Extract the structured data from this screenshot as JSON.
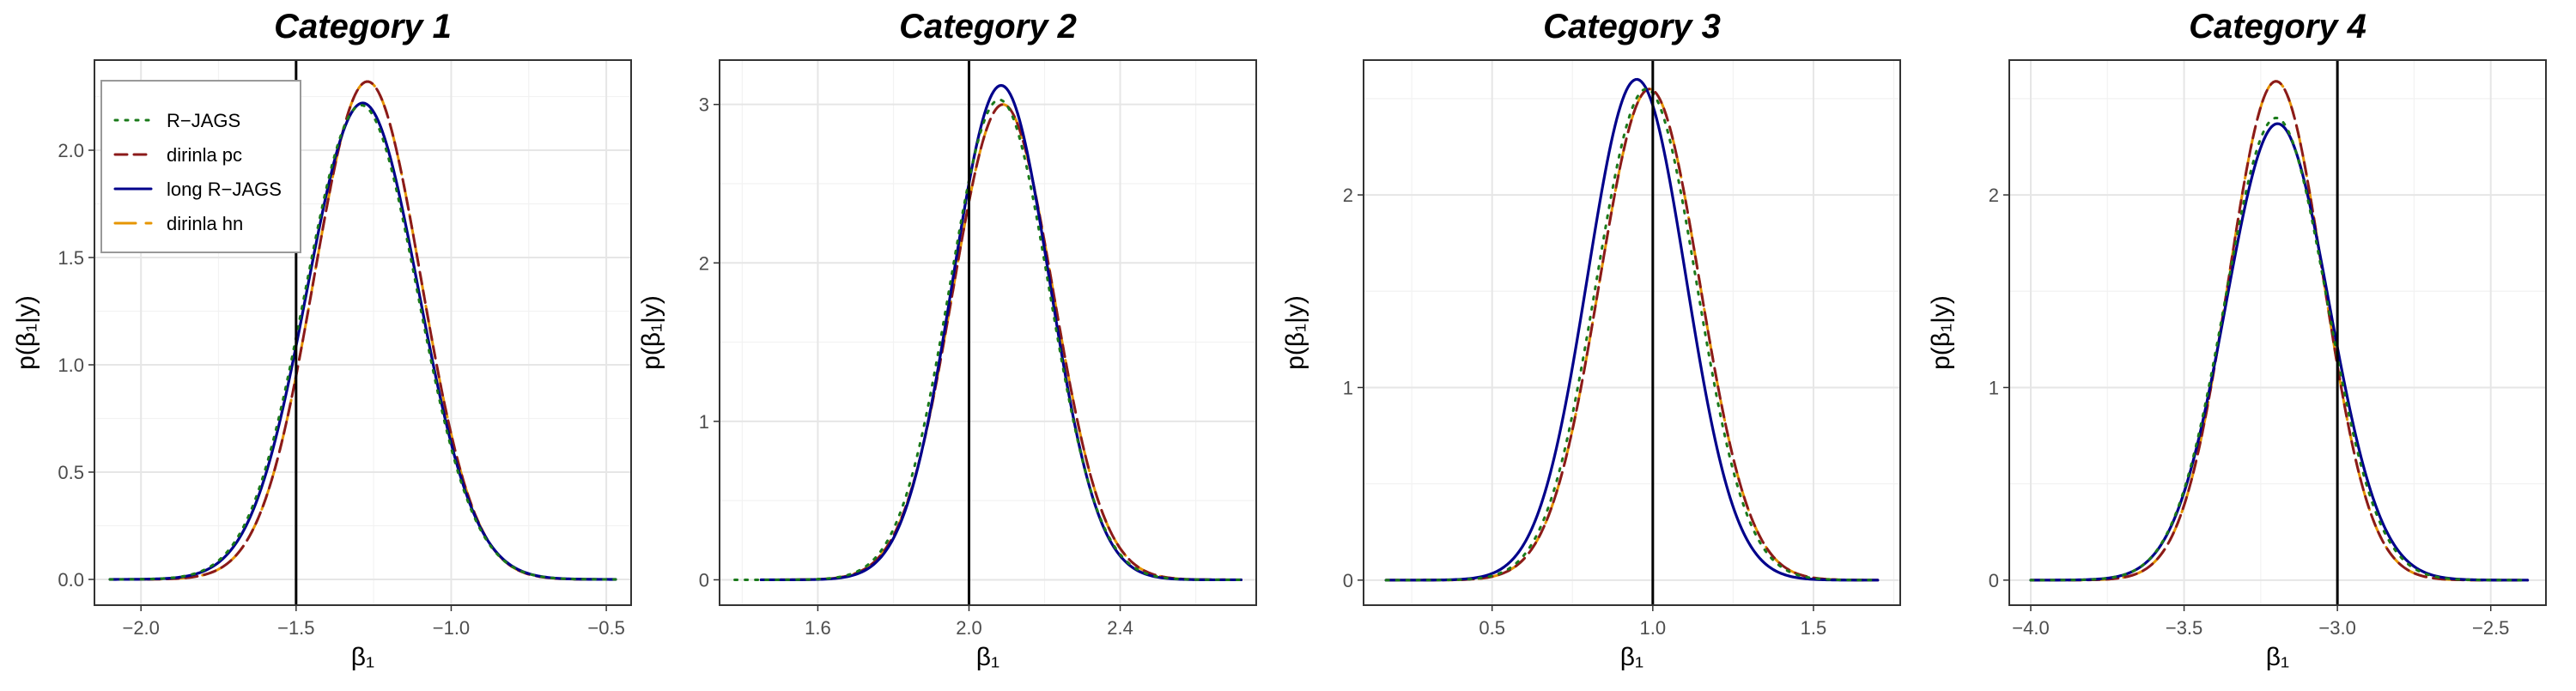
{
  "chart_data": [
    {
      "type": "line",
      "title": "Category 1",
      "xlabel": "β₁",
      "ylabel": "p(β₁|y)",
      "xlim": [
        -2.15,
        -0.42
      ],
      "ylim": [
        -0.12,
        2.42
      ],
      "xticks": [
        -2.0,
        -1.5,
        -1.0,
        -0.5
      ],
      "xtick_labels": [
        "−2.0",
        "−1.5",
        "−1.0",
        "−0.5"
      ],
      "yticks": [
        0.0,
        0.5,
        1.0,
        1.5,
        2.0
      ],
      "ytick_labels": [
        "0.0",
        "0.5",
        "1.0",
        "1.5",
        "2.0"
      ],
      "vline": -1.5,
      "x_range": [
        -2.1,
        -0.47
      ],
      "legend": {
        "position": "top-left"
      },
      "series": [
        {
          "name": "R−JAGS",
          "color": "#1a7a1a",
          "dash": "dotted",
          "peak_x": -1.29,
          "peak_y": 2.21,
          "sd": 0.181
        },
        {
          "name": "dirinla pc",
          "color": "#8b1a1a",
          "dash": "dashed",
          "peak_x": -1.27,
          "peak_y": 2.32,
          "sd": 0.172
        },
        {
          "name": "long R−JAGS",
          "color": "#00008b",
          "dash": "solid",
          "peak_x": -1.285,
          "peak_y": 2.22,
          "sd": 0.18
        },
        {
          "name": "dirinla hn",
          "color": "#e69500",
          "dash": "longdash",
          "peak_x": -1.27,
          "peak_y": 2.32,
          "sd": 0.172
        }
      ]
    },
    {
      "type": "line",
      "title": "Category 2",
      "xlabel": "β₁",
      "ylabel": "p(β₁|y)",
      "xlim": [
        1.34,
        2.76
      ],
      "ylim": [
        -0.16,
        3.28
      ],
      "xticks": [
        1.6,
        2.0,
        2.4
      ],
      "xtick_labels": [
        "1.6",
        "2.0",
        "2.4"
      ],
      "yticks": [
        0,
        1,
        2,
        3
      ],
      "ytick_labels": [
        "0",
        "1",
        "2",
        "3"
      ],
      "vline": 2.0,
      "series": [
        {
          "name": "R−JAGS",
          "color": "#1a7a1a",
          "dash": "dotted",
          "peak_x": 2.08,
          "peak_y": 3.03,
          "sd": 0.132,
          "x_range": [
            1.38,
            2.72
          ]
        },
        {
          "name": "dirinla pc",
          "color": "#8b1a1a",
          "dash": "dashed",
          "peak_x": 2.09,
          "peak_y": 3.0,
          "sd": 0.133,
          "x_range": [
            1.45,
            2.72
          ]
        },
        {
          "name": "long R−JAGS",
          "color": "#00008b",
          "dash": "solid",
          "peak_x": 2.085,
          "peak_y": 3.12,
          "sd": 0.128,
          "x_range": [
            1.45,
            2.72
          ]
        },
        {
          "name": "dirinla hn",
          "color": "#e69500",
          "dash": "longdash",
          "peak_x": 2.09,
          "peak_y": 3.0,
          "sd": 0.133,
          "x_range": [
            1.45,
            2.72
          ]
        }
      ]
    },
    {
      "type": "line",
      "title": "Category 3",
      "xlabel": "β₁",
      "ylabel": "p(β₁|y)",
      "xlim": [
        0.1,
        1.77
      ],
      "ylim": [
        -0.13,
        2.7
      ],
      "xticks": [
        0.5,
        1.0,
        1.5
      ],
      "xtick_labels": [
        "0.5",
        "1.0",
        "1.5"
      ],
      "yticks": [
        0,
        1,
        2
      ],
      "ytick_labels": [
        "0",
        "1",
        "2"
      ],
      "vline": 1.0,
      "x_range": [
        0.17,
        1.7
      ],
      "series": [
        {
          "name": "R−JAGS",
          "color": "#1a7a1a",
          "dash": "dotted",
          "peak_x": 0.98,
          "peak_y": 2.55,
          "sd": 0.156
        },
        {
          "name": "dirinla pc",
          "color": "#8b1a1a",
          "dash": "dashed",
          "peak_x": 0.99,
          "peak_y": 2.55,
          "sd": 0.156
        },
        {
          "name": "long R−JAGS",
          "color": "#00008b",
          "dash": "solid",
          "peak_x": 0.95,
          "peak_y": 2.6,
          "sd": 0.153
        },
        {
          "name": "dirinla hn",
          "color": "#e69500",
          "dash": "longdash",
          "peak_x": 0.99,
          "peak_y": 2.55,
          "sd": 0.156
        }
      ]
    },
    {
      "type": "line",
      "title": "Category 4",
      "xlabel": "β₁",
      "ylabel": "p(β₁|y)",
      "xlim": [
        -4.07,
        -2.32
      ],
      "ylim": [
        -0.13,
        2.7
      ],
      "xticks": [
        -4.0,
        -3.5,
        -3.0,
        -2.5
      ],
      "xtick_labels": [
        "−4.0",
        "−3.5",
        "−3.0",
        "−2.5"
      ],
      "yticks": [
        0,
        1,
        2
      ],
      "ytick_labels": [
        "0",
        "1",
        "2"
      ],
      "vline": -3.0,
      "x_range": [
        -4.0,
        -2.38
      ],
      "series": [
        {
          "name": "R−JAGS",
          "color": "#1a7a1a",
          "dash": "dotted",
          "peak_x": -3.2,
          "peak_y": 2.4,
          "sd": 0.166
        },
        {
          "name": "dirinla pc",
          "color": "#8b1a1a",
          "dash": "dashed",
          "peak_x": -3.2,
          "peak_y": 2.59,
          "sd": 0.154
        },
        {
          "name": "long R−JAGS",
          "color": "#00008b",
          "dash": "solid",
          "peak_x": -3.195,
          "peak_y": 2.37,
          "sd": 0.168
        },
        {
          "name": "dirinla hn",
          "color": "#e69500",
          "dash": "longdash",
          "peak_x": -3.2,
          "peak_y": 2.59,
          "sd": 0.154
        }
      ]
    }
  ]
}
